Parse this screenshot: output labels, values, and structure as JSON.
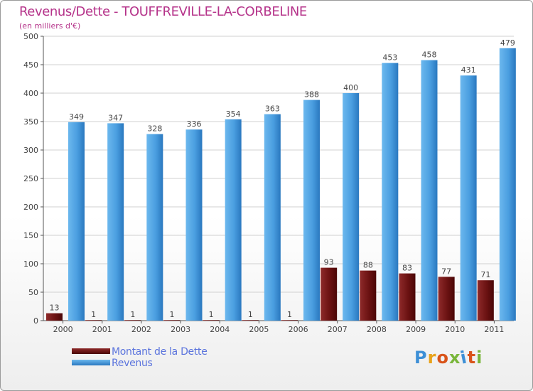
{
  "header": {
    "title": "Revenus/Dette - TOUFFREVILLE-LA-CORBELINE",
    "subtitle": "(en milliers d'€)"
  },
  "chart_data": {
    "type": "bar",
    "categories": [
      "2000",
      "2001",
      "2002",
      "2003",
      "2004",
      "2005",
      "2006",
      "2007",
      "2008",
      "2009",
      "2010",
      "2011"
    ],
    "series": [
      {
        "name": "Montant de la Dette",
        "color": "#6b0f0f",
        "values": [
          13,
          1,
          1,
          1,
          1,
          1,
          1,
          93,
          88,
          83,
          77,
          71
        ]
      },
      {
        "name": "Revenus",
        "color": "#3d8fd6",
        "values": [
          349,
          347,
          328,
          336,
          354,
          363,
          388,
          400,
          453,
          458,
          431,
          479
        ]
      }
    ],
    "yticks": [
      "0",
      "50",
      "100",
      "150",
      "200",
      "250",
      "300",
      "350",
      "400",
      "450",
      "500"
    ],
    "ylim": [
      0,
      500
    ],
    "grid": true,
    "legend_position": "bottom-left"
  },
  "legend": {
    "items": [
      {
        "label": "Montant de la Dette",
        "color": "#6b0f0f"
      },
      {
        "label": "Revenus",
        "color": "#3d8fd6"
      }
    ]
  },
  "logo": {
    "text": "Proxiti",
    "letter_colors": [
      "#3d8fd6",
      "#e8a21a",
      "#d9541a",
      "#79b63a",
      "#3d8fd6",
      "#d9541a",
      "#79b63a"
    ]
  }
}
